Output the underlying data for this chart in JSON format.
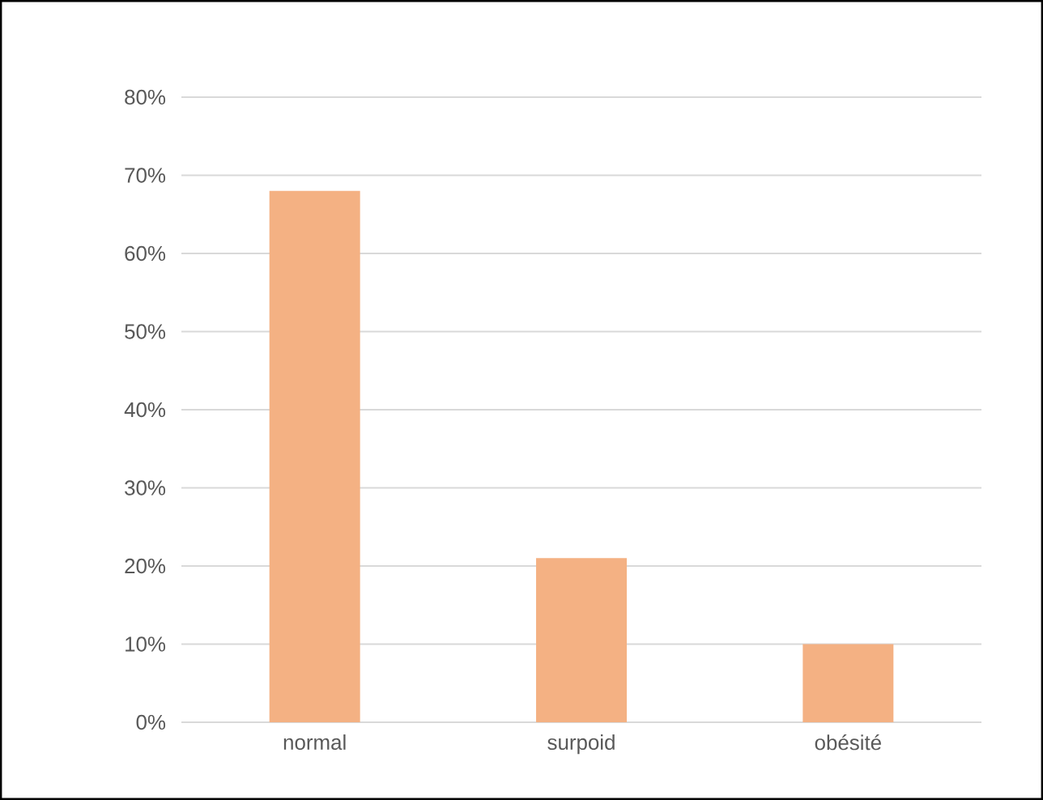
{
  "chart_data": {
    "type": "bar",
    "categories": [
      "normal",
      "surpoid",
      "obésité"
    ],
    "values": [
      68,
      21,
      10
    ],
    "color": "#f4b183",
    "ylim": [
      0,
      80
    ],
    "yticks": [
      {
        "value": 0,
        "label": "0%"
      },
      {
        "value": 10,
        "label": "10%"
      },
      {
        "value": 20,
        "label": "20%"
      },
      {
        "value": 30,
        "label": "30%"
      },
      {
        "value": 40,
        "label": "40%"
      },
      {
        "value": 50,
        "label": "50%"
      },
      {
        "value": 60,
        "label": "60%"
      },
      {
        "value": 70,
        "label": "70%"
      },
      {
        "value": 80,
        "label": "80%"
      }
    ],
    "grid": "y"
  }
}
